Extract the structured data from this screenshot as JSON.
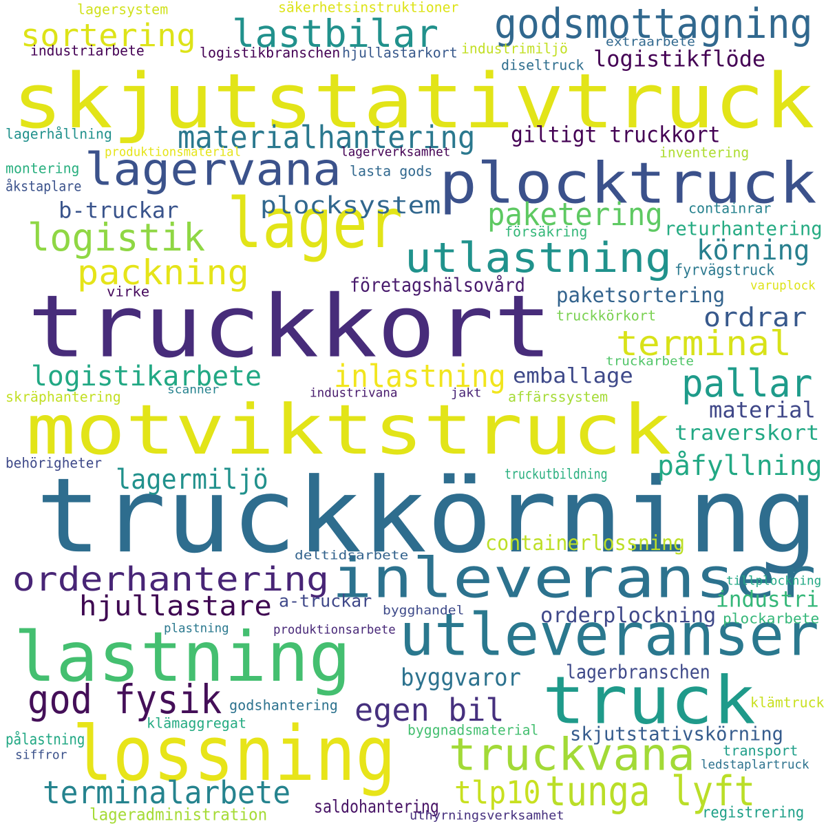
{
  "words": [
    {
      "text": "skjutstativtruck",
      "color": "#e2e418"
    },
    {
      "text": "truckkort",
      "color": "#472c7a"
    },
    {
      "text": "truckkörning",
      "color": "#2e6d8e"
    },
    {
      "text": "motviktstruck",
      "color": "#e2e418"
    },
    {
      "text": "plocktruck",
      "color": "#3b518b"
    },
    {
      "text": "lager",
      "color": "#e2e418"
    },
    {
      "text": "lastning",
      "color": "#44bf70"
    },
    {
      "text": "lossning",
      "color": "#e7e419"
    },
    {
      "text": "truck",
      "color": "#1f9a8a"
    },
    {
      "text": "lagervana",
      "color": "#3b528b"
    },
    {
      "text": "inleveranser",
      "color": "#2c728e"
    },
    {
      "text": "utleveranser",
      "color": "#2a788e"
    },
    {
      "text": "utlastning",
      "color": "#20928c"
    },
    {
      "text": "godsmottagning",
      "color": "#31688e"
    },
    {
      "text": "lastbilar",
      "color": "#21918c"
    },
    {
      "text": "truckvana",
      "color": "#a2da37"
    },
    {
      "text": "tunga lyft",
      "color": "#bade28"
    },
    {
      "text": "orderhantering",
      "color": "#482576"
    },
    {
      "text": "god fysik",
      "color": "#440f58"
    },
    {
      "text": "logistik",
      "color": "#8fd744"
    },
    {
      "text": "packning",
      "color": "#e5e419"
    },
    {
      "text": "materialhantering",
      "color": "#2a788e"
    },
    {
      "text": "sortering",
      "color": "#dde318"
    },
    {
      "text": "terminalarbete",
      "color": "#25838e"
    },
    {
      "text": "logistikarbete",
      "color": "#22a884"
    },
    {
      "text": "pallar",
      "color": "#1e9b8a"
    },
    {
      "text": "terminal",
      "color": "#d8e219"
    },
    {
      "text": "inlastning",
      "color": "#f1e51d"
    },
    {
      "text": "paketering",
      "color": "#5ec962"
    },
    {
      "text": "plocksystem",
      "color": "#31678e"
    },
    {
      "text": "egen bil",
      "color": "#46307e"
    },
    {
      "text": "hjullastare",
      "color": "#3e0751"
    },
    {
      "text": "lagermiljö",
      "color": "#21918c"
    },
    {
      "text": "påfyllning",
      "color": "#22a884"
    },
    {
      "text": "tlp10",
      "color": "#c8e020"
    },
    {
      "text": "b-truckar",
      "color": "#3a548c"
    },
    {
      "text": "körning",
      "color": "#277f8e"
    },
    {
      "text": "ordrar",
      "color": "#38598c"
    },
    {
      "text": "logistikflöde",
      "color": "#440154"
    },
    {
      "text": "giltigt truckkort",
      "color": "#440154"
    },
    {
      "text": "paketsortering",
      "color": "#33638d"
    },
    {
      "text": "emballage",
      "color": "#3e4989"
    },
    {
      "text": "material",
      "color": "#3f4788"
    },
    {
      "text": "traverskort",
      "color": "#22a884"
    },
    {
      "text": "containerlossning",
      "color": "#bddf26"
    },
    {
      "text": "orderplockning",
      "color": "#3f4889"
    },
    {
      "text": "industri",
      "color": "#35b779"
    },
    {
      "text": "byggvaror",
      "color": "#2c728e"
    },
    {
      "text": "lagerbranschen",
      "color": "#3e4989"
    },
    {
      "text": "skjutstativskörning",
      "color": "#365c8d"
    },
    {
      "text": "företagshälsovård",
      "color": "#481a6c"
    },
    {
      "text": "returhantering",
      "color": "#25ab82"
    },
    {
      "text": "saldohantering",
      "color": "#471365"
    },
    {
      "text": "lageradministration",
      "color": "#a5db36"
    },
    {
      "text": "a-truckar",
      "color": "#3f4889"
    },
    {
      "text": "lagersystem",
      "color": "#d0e11c"
    },
    {
      "text": "säkerhetsinstruktioner",
      "color": "#dde318"
    },
    {
      "text": "industriarbete",
      "color": "#440154"
    },
    {
      "text": "logistikbranschen",
      "color": "#440154"
    },
    {
      "text": "hjullastarkort",
      "color": "#38598c"
    },
    {
      "text": "industrimiljö",
      "color": "#c2df23"
    },
    {
      "text": "extraarbete",
      "color": "#31688e"
    },
    {
      "text": "diseltruck",
      "color": "#2e6e8e"
    },
    {
      "text": "lagerhållning",
      "color": "#21918c"
    },
    {
      "text": "produktionsmaterial",
      "color": "#e5e419"
    },
    {
      "text": "lagerverksamhet",
      "color": "#440154"
    },
    {
      "text": "inventering",
      "color": "#addc30"
    },
    {
      "text": "montering",
      "color": "#29af7f"
    },
    {
      "text": "lasta gods",
      "color": "#31688e"
    },
    {
      "text": "åkstaplare",
      "color": "#3b528b"
    },
    {
      "text": "containrar",
      "color": "#26828e"
    },
    {
      "text": "försäkring",
      "color": "#35b779"
    },
    {
      "text": "fyrvägstruck",
      "color": "#2a788e"
    },
    {
      "text": "varuplock",
      "color": "#dde318"
    },
    {
      "text": "virke",
      "color": "#460a5d"
    },
    {
      "text": "truckkörkort",
      "color": "#7ad151"
    },
    {
      "text": "truckarbete",
      "color": "#52c569"
    },
    {
      "text": "skräphantering",
      "color": "#c2df23"
    },
    {
      "text": "scanner",
      "color": "#26828e"
    },
    {
      "text": "industrivana",
      "color": "#481b6d"
    },
    {
      "text": "jakt",
      "color": "#482475"
    },
    {
      "text": "affärssystem",
      "color": "#a5db36"
    },
    {
      "text": "behörigheter",
      "color": "#3e4989"
    },
    {
      "text": "truckutbildning",
      "color": "#29af7f"
    },
    {
      "text": "deltidsarbete",
      "color": "#33638d"
    },
    {
      "text": "tillplockning",
      "color": "#22a884"
    },
    {
      "text": "bygghandel",
      "color": "#3e4a89"
    },
    {
      "text": "plastning",
      "color": "#2a788e"
    },
    {
      "text": "produktionsarbete",
      "color": "#482878"
    },
    {
      "text": "plockarbete",
      "color": "#35b779"
    },
    {
      "text": "godshantering",
      "color": "#2c728e"
    },
    {
      "text": "klämtruck",
      "color": "#c8e020"
    },
    {
      "text": "klämaggregat",
      "color": "#25ab82"
    },
    {
      "text": "byggnadsmaterial",
      "color": "#44bf70"
    },
    {
      "text": "pålastning",
      "color": "#22a884"
    },
    {
      "text": "siffror",
      "color": "#3b528b"
    },
    {
      "text": "transport",
      "color": "#1f9e89"
    },
    {
      "text": "ledstaplartruck",
      "color": "#2c728e"
    },
    {
      "text": "uthyrningsverksamhet",
      "color": "#46307e"
    },
    {
      "text": "registrering",
      "color": "#1fa088"
    }
  ]
}
